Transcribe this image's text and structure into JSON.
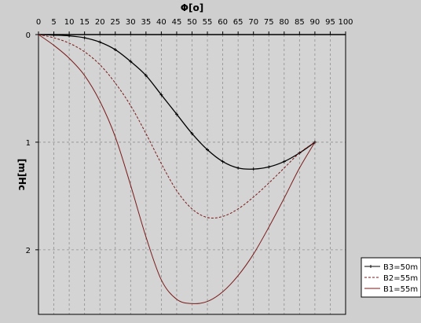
{
  "chart_data": {
    "type": "line",
    "title": "",
    "xlabel": "Φ[o]",
    "ylabel": "[m]Hc",
    "xlim": [
      0,
      100
    ],
    "ylim": [
      0,
      2.6
    ],
    "x_axis_position": "top",
    "x_ticks": [
      0,
      5,
      10,
      15,
      20,
      25,
      30,
      35,
      40,
      45,
      50,
      55,
      60,
      65,
      70,
      75,
      80,
      85,
      90,
      95,
      100
    ],
    "x_tick_labels": [
      "0",
      "5",
      "10",
      "15",
      "20",
      "25",
      "30",
      "35",
      "40",
      "45",
      "50",
      "55",
      "60",
      "65",
      "70",
      "75",
      "80",
      "85",
      "90",
      "95",
      "100"
    ],
    "y_ticks": [
      0,
      1,
      2
    ],
    "y_tick_labels": [
      "0",
      "1",
      "2"
    ],
    "grid": true,
    "legend_position": "bottom-right",
    "series": [
      {
        "name": "B3=50m",
        "color": "#000000",
        "style": "solid-markers",
        "x": [
          0,
          5,
          10,
          15,
          20,
          25,
          30,
          35,
          40,
          45,
          50,
          55,
          60,
          65,
          70,
          75,
          80,
          85,
          90
        ],
        "y": [
          0,
          0.005,
          0.012,
          0.03,
          0.07,
          0.14,
          0.25,
          0.38,
          0.56,
          0.74,
          0.92,
          1.07,
          1.18,
          1.24,
          1.25,
          1.23,
          1.18,
          1.1,
          1.0
        ]
      },
      {
        "name": "B2=55m",
        "color": "#7a1a1a",
        "style": "dashed",
        "x": [
          0,
          5,
          10,
          15,
          20,
          25,
          30,
          35,
          40,
          45,
          50,
          55,
          60,
          65,
          70,
          75,
          80,
          85,
          90
        ],
        "y": [
          0,
          0.03,
          0.08,
          0.16,
          0.28,
          0.45,
          0.66,
          0.92,
          1.2,
          1.45,
          1.62,
          1.7,
          1.69,
          1.62,
          1.51,
          1.38,
          1.24,
          1.1,
          1.0
        ]
      },
      {
        "name": "B1=55m",
        "color": "#7a1a1a",
        "style": "solid",
        "x": [
          0,
          5,
          10,
          15,
          20,
          25,
          30,
          35,
          40,
          45,
          50,
          55,
          60,
          65,
          70,
          75,
          80,
          85,
          90
        ],
        "y": [
          0,
          0.1,
          0.22,
          0.38,
          0.62,
          0.95,
          1.4,
          1.88,
          2.28,
          2.46,
          2.5,
          2.48,
          2.39,
          2.24,
          2.04,
          1.79,
          1.52,
          1.24,
          1.0
        ]
      }
    ]
  }
}
